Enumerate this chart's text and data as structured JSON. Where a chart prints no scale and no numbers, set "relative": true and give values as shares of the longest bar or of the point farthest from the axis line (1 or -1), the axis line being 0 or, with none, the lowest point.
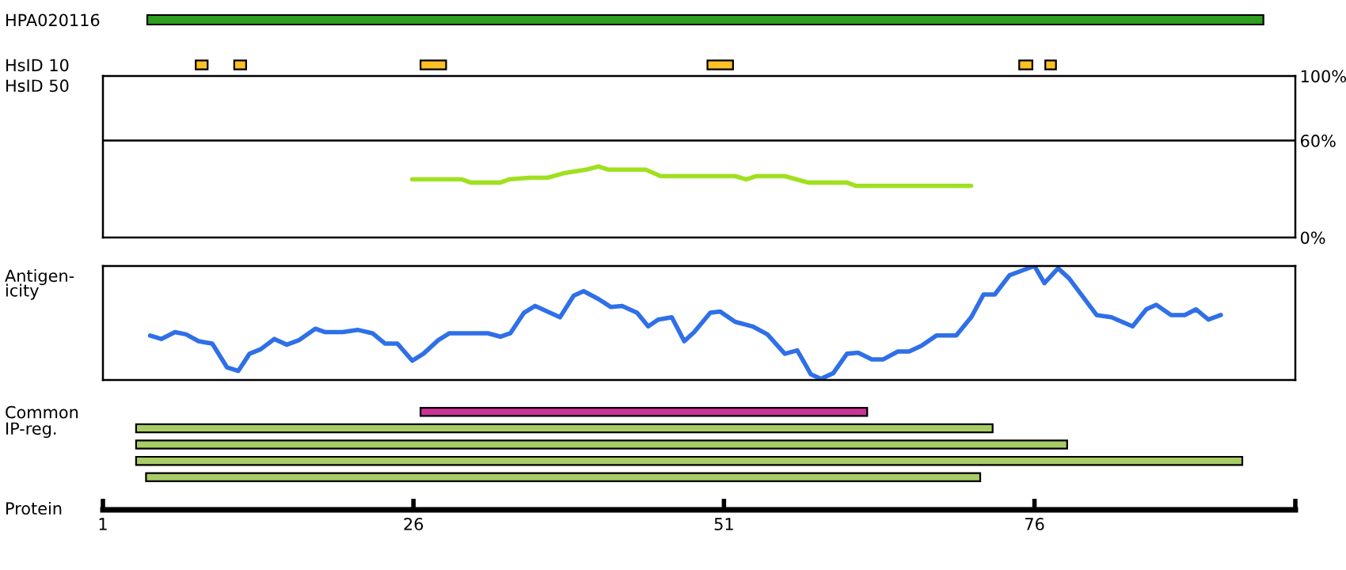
{
  "chart_data": [
    {
      "type": "bar",
      "orientation": "horizontal",
      "categories": [
        "HPA020116"
      ],
      "xlim": [
        1,
        97
      ],
      "tick_labels": "y",
      "series": [
        {
          "color": "#2e9e1e",
          "values": [
            90
          ],
          "base": [
            4.5
          ]
        }
      ]
    },
    {
      "type": "bar",
      "orientation": "horizontal",
      "categories": [
        "HsID 10"
      ],
      "xlim": [
        1,
        97
      ],
      "tick_labels": "y",
      "series": [
        {
          "color": "#ffc125",
          "values": [
            1.1
          ],
          "base": [
            8.4
          ]
        },
        {
          "color": "#ffc125",
          "values": [
            1.1
          ],
          "base": [
            11.5
          ]
        },
        {
          "color": "#ffc125",
          "values": [
            2.2
          ],
          "base": [
            26.5
          ]
        },
        {
          "color": "#ffc125",
          "values": [
            2.2
          ],
          "base": [
            49.6
          ]
        },
        {
          "color": "#ffc125",
          "values": [
            1.2
          ],
          "base": [
            74.7
          ]
        },
        {
          "color": "#ffc125",
          "values": [
            1.0
          ],
          "base": [
            76.8
          ]
        }
      ]
    },
    {
      "type": "line",
      "ylabel": "HsID 50",
      "xlim": [
        1,
        97
      ],
      "ylim": [
        0,
        100
      ],
      "tick_labels": "y",
      "yticks": [
        {
          "value": 0,
          "label": "0%"
        },
        {
          "value": 60,
          "label": "60%"
        },
        {
          "value": 100,
          "label": "100%"
        }
      ],
      "ref_lines": [
        {
          "axis": "y",
          "value": 60,
          "color": "#000000"
        }
      ],
      "series": [
        {
          "color": "#a0e020",
          "x": [
            25.9,
            29.9,
            30.6,
            33.0,
            33.7,
            35.4,
            36.8,
            38.2,
            39.9,
            40.9,
            41.7,
            44.7,
            45.9,
            51.9,
            52.8,
            53.6,
            55.9,
            57.8,
            60.9,
            61.6,
            70.9
          ],
          "values": [
            36,
            36,
            34,
            34,
            36,
            37,
            37,
            40,
            42,
            44,
            42,
            42,
            38,
            38,
            36,
            38,
            38,
            34,
            34,
            32,
            32
          ]
        }
      ]
    },
    {
      "type": "line",
      "ylabel": "Antigen-\nicity",
      "xlim": [
        1,
        97
      ],
      "relative": true,
      "tick_labels": false,
      "series": [
        {
          "color": "#2f6fe8",
          "x": [
            4.8,
            5.7,
            6.8,
            7.7,
            8.7,
            9.8,
            11.0,
            11.9,
            12.8,
            13.7,
            14.8,
            15.8,
            16.8,
            18.1,
            18.9,
            20.3,
            21.5,
            22.7,
            23.7,
            24.7,
            25.9,
            26.8,
            28.0,
            28.9,
            32.0,
            33.0,
            33.8,
            34.9,
            35.8,
            37.8,
            38.9,
            39.7,
            40.9,
            41.9,
            42.8,
            44.0,
            44.9,
            45.7,
            46.8,
            47.8,
            48.6,
            49.9,
            50.7,
            51.9,
            53.3,
            54.5,
            55.9,
            56.9,
            58.0,
            58.8,
            59.8,
            60.9,
            61.8,
            62.9,
            63.8,
            65.0,
            65.9,
            66.9,
            68.1,
            69.7,
            70.9,
            71.9,
            72.8,
            74.0,
            75.0,
            76.0,
            76.8,
            77.9,
            78.8,
            81.0,
            82.2,
            83.9,
            85.0,
            85.8,
            87.0,
            88.1,
            89.0,
            90.0,
            91.0
          ],
          "values": [
            0.39,
            0.36,
            0.42,
            0.4,
            0.34,
            0.32,
            0.11,
            0.08,
            0.23,
            0.27,
            0.36,
            0.31,
            0.35,
            0.45,
            0.42,
            0.42,
            0.44,
            0.41,
            0.32,
            0.32,
            0.17,
            0.23,
            0.35,
            0.41,
            0.41,
            0.38,
            0.41,
            0.59,
            0.65,
            0.55,
            0.74,
            0.78,
            0.71,
            0.64,
            0.65,
            0.59,
            0.47,
            0.53,
            0.55,
            0.34,
            0.42,
            0.59,
            0.6,
            0.51,
            0.47,
            0.4,
            0.23,
            0.26,
            0.05,
            0.01,
            0.06,
            0.23,
            0.24,
            0.18,
            0.18,
            0.25,
            0.25,
            0.3,
            0.39,
            0.39,
            0.55,
            0.75,
            0.75,
            0.92,
            0.96,
            1.0,
            0.85,
            0.98,
            0.89,
            0.57,
            0.55,
            0.47,
            0.62,
            0.66,
            0.57,
            0.57,
            0.62,
            0.53,
            0.57
          ]
        }
      ]
    },
    {
      "type": "bar",
      "orientation": "horizontal",
      "categories": [
        "Common",
        "IP-reg.",
        null,
        null,
        null
      ],
      "xlabel": "Protein",
      "xlim": [
        1,
        97
      ],
      "xticks": [
        1,
        26,
        51,
        76,
        {
          "value": 97,
          "label": null
        }
      ],
      "series": [
        {
          "colors": [
            "#cc3399",
            "#a8cc66",
            "#a8cc66",
            "#a8cc66",
            "#a8cc66"
          ],
          "values": [
            36.1,
            69.1,
            75.1,
            89.2,
            67.3
          ],
          "base": [
            26.5,
            3.6,
            3.6,
            3.6,
            4.4
          ]
        }
      ]
    }
  ]
}
